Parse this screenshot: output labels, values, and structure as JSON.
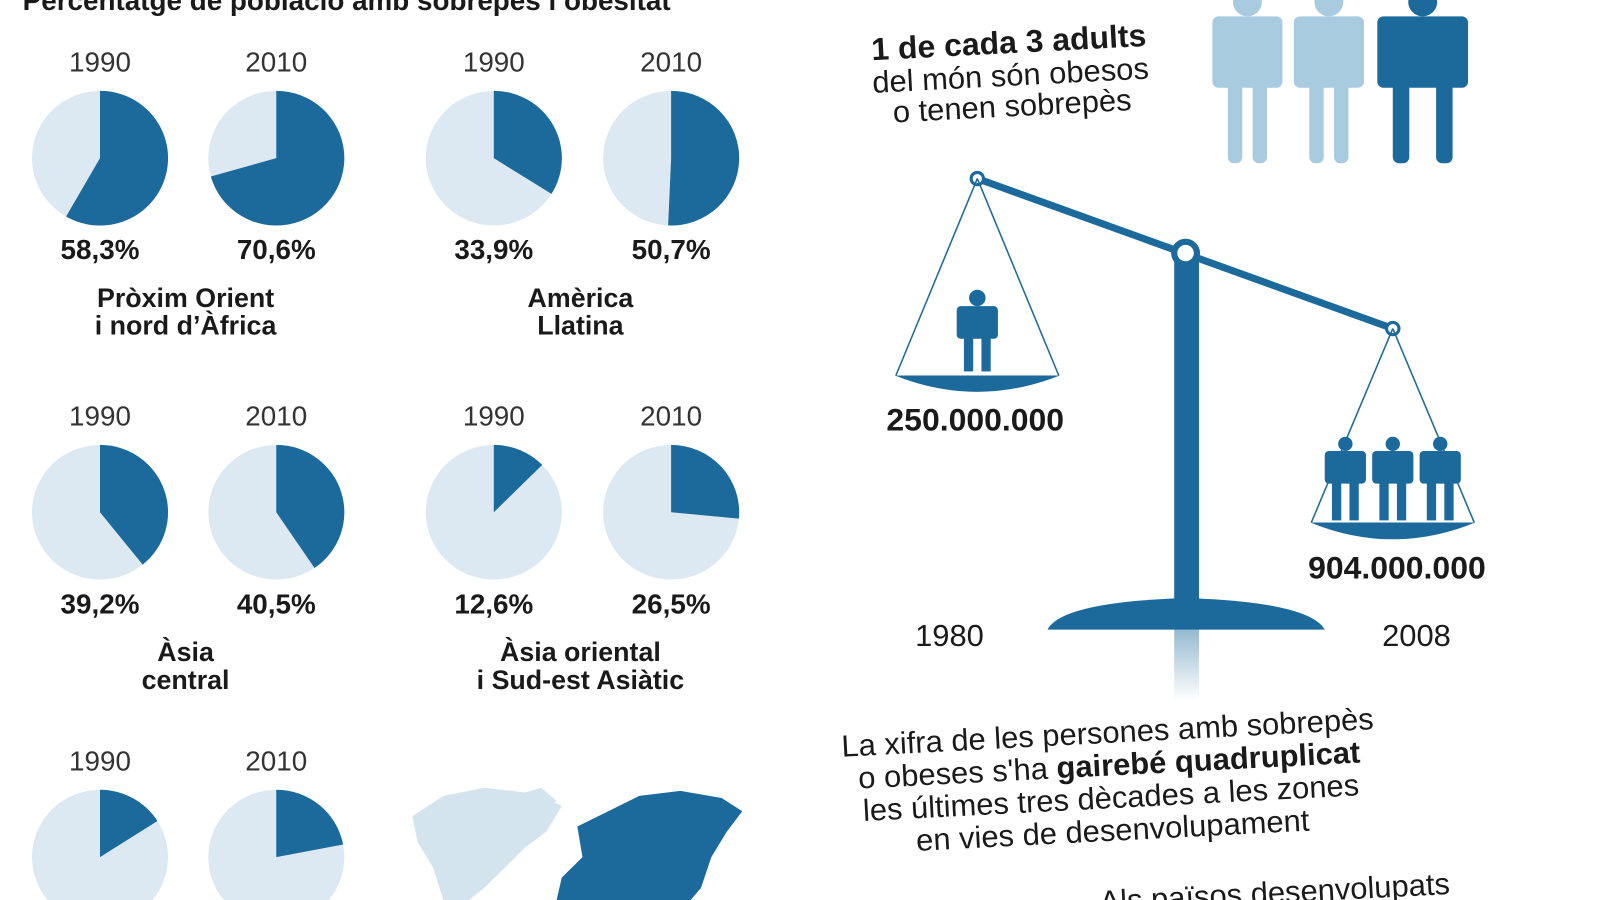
{
  "heading": "Percentatge de població amb sobrepès i obesitat",
  "chart_data": [
    {
      "type": "pie",
      "title": [
        "Pròxim Orient",
        "i nord d’Àfrica"
      ],
      "categories": [
        "1990",
        "2010"
      ],
      "values": [
        58.3,
        70.6
      ],
      "value_labels": [
        "58,3%",
        "70,6%"
      ],
      "color": "#1c6a9b"
    },
    {
      "type": "pie",
      "title": [
        "Amèrica",
        "Llatina"
      ],
      "categories": [
        "1990",
        "2010"
      ],
      "values": [
        33.9,
        50.7
      ],
      "value_labels": [
        "33,9%",
        "50,7%"
      ],
      "color": "#1c6a9b"
    },
    {
      "type": "pie",
      "title": [
        "Àsia",
        "central"
      ],
      "categories": [
        "1990",
        "2010"
      ],
      "values": [
        39.2,
        40.5
      ],
      "value_labels": [
        "39,2%",
        "40,5%"
      ],
      "color": "#1c6a9b"
    },
    {
      "type": "pie",
      "title": [
        "Àsia oriental",
        "i Sud-est Asiàtic"
      ],
      "categories": [
        "1990",
        "2010"
      ],
      "values": [
        12.6,
        26.5
      ],
      "value_labels": [
        "12,6%",
        "26,5%"
      ],
      "color": "#1c6a9b"
    },
    {
      "type": "pie",
      "categories": [
        "1990",
        "2010"
      ],
      "values": [
        16,
        22
      ],
      "color": "#1c6a9b"
    }
  ],
  "headline": {
    "bold": "1 de cada 3 adults",
    "lines": [
      "del món són obesos",
      "o tenen sobrepès"
    ]
  },
  "scale": {
    "left_value": "250.000.000",
    "right_value": "904.000.000",
    "left_year": "1980",
    "right_year": "2008"
  },
  "note": {
    "line1": "La xifra de les persones amb sobrepès",
    "line2a": "o obeses s'ha ",
    "line2b": "gairebé quadruplicat",
    "line3": "les últimes tres dècades a les zones",
    "line4": "en vies de desenvolupament"
  },
  "footer": "Als països desenvolupats"
}
